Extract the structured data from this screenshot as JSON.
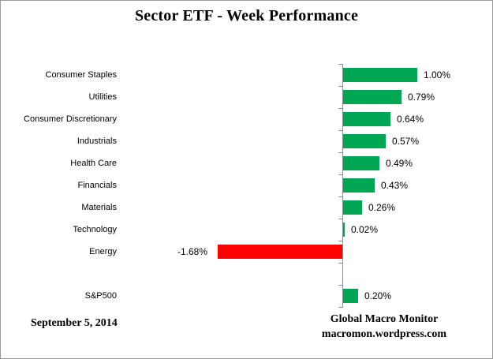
{
  "page": {
    "title": "Sector ETF - Week Performance",
    "footer_left": "September 5, 2014",
    "footer_right_line1": "Global Macro Monitor",
    "footer_right_line2": "macromon.wordpress.com"
  },
  "colors": {
    "positive_bar": "#00A651",
    "negative_bar": "#FF0000",
    "axis": "#8C8C8C",
    "text": "#000000",
    "frame_border": "#9A9A9A"
  },
  "chart_data": {
    "type": "bar",
    "orientation": "horizontal",
    "title": "Sector ETF - Week Performance",
    "unit": "%",
    "baseline_at_zero": true,
    "grid": false,
    "legend": "none",
    "category_axis_side": "left",
    "value_axis_labels_shown": false,
    "xlim": [
      -2.0,
      2.0
    ],
    "rows": [
      {
        "category": "Consumer Staples",
        "value": 1.0,
        "label": "1.00%"
      },
      {
        "category": "Utilities",
        "value": 0.79,
        "label": "0.79%"
      },
      {
        "category": "Consumer Discretionary",
        "value": 0.64,
        "label": "0.64%"
      },
      {
        "category": "Industrials",
        "value": 0.57,
        "label": "0.57%"
      },
      {
        "category": "Health Care",
        "value": 0.49,
        "label": "0.49%"
      },
      {
        "category": "Financials",
        "value": 0.43,
        "label": "0.43%"
      },
      {
        "category": "Materials",
        "value": 0.26,
        "label": "0.26%"
      },
      {
        "category": "Technology",
        "value": 0.02,
        "label": "0.02%"
      },
      {
        "category": "Energy",
        "value": -1.68,
        "label": "-1.68%"
      },
      {
        "category": "",
        "value": null,
        "label": ""
      },
      {
        "category": "S&P500",
        "value": 0.2,
        "label": "0.20%"
      }
    ]
  }
}
